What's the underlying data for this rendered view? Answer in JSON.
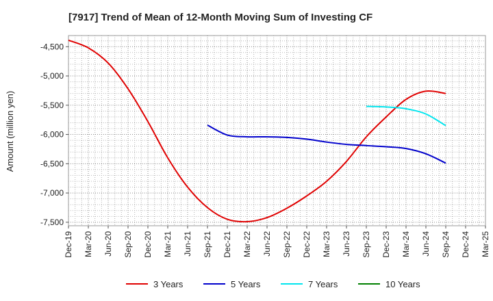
{
  "chart_data": {
    "type": "line",
    "title": "[7917]  Trend of Mean of 12-Month Moving Sum of Investing CF",
    "ylabel": "Amount (million yen)",
    "xlabel": "",
    "ylim": [
      -7560,
      -4310
    ],
    "yticks": [
      -4500,
      -5000,
      -5500,
      -6000,
      -6500,
      -7000,
      -7500
    ],
    "ytick_labels": [
      "-4,500",
      "-5,000",
      "-5,500",
      "-6,000",
      "-6,500",
      "-7,000",
      "-7,500"
    ],
    "categories": [
      "Dec-19",
      "Mar-20",
      "Jun-20",
      "Sep-20",
      "Dec-20",
      "Mar-21",
      "Jun-21",
      "Sep-21",
      "Dec-21",
      "Mar-22",
      "Jun-22",
      "Sep-22",
      "Dec-22",
      "Mar-23",
      "Jun-23",
      "Sep-23",
      "Dec-23",
      "Mar-24",
      "Jun-24",
      "Sep-24",
      "Dec-24",
      "Mar-25"
    ],
    "grid": true,
    "legend_position": "bottom",
    "series": [
      {
        "name": "3 Years",
        "color": "#e00000",
        "points": [
          [
            "Dec-19",
            -4390
          ],
          [
            "Mar-20",
            -4520
          ],
          [
            "Jun-20",
            -4780
          ],
          [
            "Sep-20",
            -5220
          ],
          [
            "Dec-20",
            -5780
          ],
          [
            "Mar-21",
            -6400
          ],
          [
            "Jun-21",
            -6900
          ],
          [
            "Sep-21",
            -7250
          ],
          [
            "Dec-21",
            -7450
          ],
          [
            "Mar-22",
            -7490
          ],
          [
            "Jun-22",
            -7420
          ],
          [
            "Sep-22",
            -7260
          ],
          [
            "Dec-22",
            -7050
          ],
          [
            "Mar-23",
            -6800
          ],
          [
            "Jun-23",
            -6460
          ],
          [
            "Sep-23",
            -6040
          ],
          [
            "Dec-23",
            -5700
          ],
          [
            "Mar-24",
            -5400
          ],
          [
            "Jun-24",
            -5260
          ],
          [
            "Sep-24",
            -5300
          ]
        ]
      },
      {
        "name": "5 Years",
        "color": "#0000cc",
        "points": [
          [
            "Sep-21",
            -5840
          ],
          [
            "Dec-21",
            -6010
          ],
          [
            "Mar-22",
            -6040
          ],
          [
            "Jun-22",
            -6040
          ],
          [
            "Sep-22",
            -6050
          ],
          [
            "Dec-22",
            -6080
          ],
          [
            "Mar-23",
            -6130
          ],
          [
            "Jun-23",
            -6170
          ],
          [
            "Sep-23",
            -6190
          ],
          [
            "Dec-23",
            -6210
          ],
          [
            "Mar-24",
            -6240
          ],
          [
            "Jun-24",
            -6330
          ],
          [
            "Sep-24",
            -6490
          ]
        ]
      },
      {
        "name": "7 Years",
        "color": "#00e5ee",
        "points": [
          [
            "Sep-23",
            -5520
          ],
          [
            "Dec-23",
            -5530
          ],
          [
            "Mar-24",
            -5560
          ],
          [
            "Jun-24",
            -5650
          ],
          [
            "Sep-24",
            -5850
          ]
        ]
      },
      {
        "name": "10 Years",
        "color": "#008000",
        "points": []
      }
    ]
  }
}
